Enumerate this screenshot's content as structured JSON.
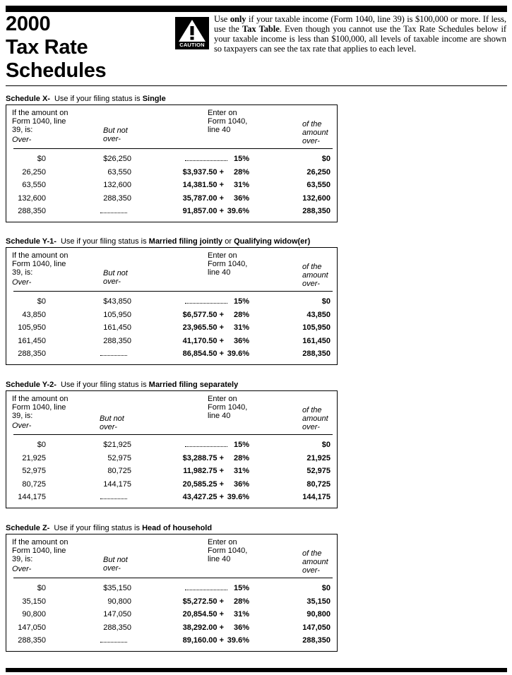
{
  "header": {
    "title_lines": [
      "2000",
      "Tax Rate",
      "Schedules"
    ],
    "caution": "CAUTION",
    "notice": [
      {
        "text": "Use ",
        "bold": false
      },
      {
        "text": "only",
        "bold": true
      },
      {
        "text": " if your taxable income (Form 1040, line 39) is $100,000 or more. If less, use the ",
        "bold": false
      },
      {
        "text": "Tax Table",
        "bold": true
      },
      {
        "text": ". Even though you cannot use the Tax Rate Schedules below if your taxable income is less than $100,000, all levels of taxable income are shown so taxpayers can see the tax rate that applies to each level.",
        "bold": false
      }
    ]
  },
  "columns": {
    "over_intro": "If the amount on Form 1040, line 39, is:",
    "over": "Over-",
    "but_not_over": "But not over-",
    "enter": "Enter on Form 1040, line 40",
    "of_amount_over": "of the amount over-"
  },
  "schedules": [
    {
      "caption": [
        {
          "text": "Schedule X-",
          "bold": true
        },
        {
          "text": "Use if your filing status is ",
          "bold": false
        },
        {
          "text": "Single",
          "bold": true
        }
      ],
      "rows": [
        {
          "over": "$0",
          "but_not_over": "$26,250",
          "base": null,
          "rate": "15%",
          "of_amount_over": "$0"
        },
        {
          "over": "26,250",
          "but_not_over": "63,550",
          "base": "$3,937.50 +",
          "rate": "28%",
          "of_amount_over": "26,250"
        },
        {
          "over": "63,550",
          "but_not_over": "132,600",
          "base": "14,381.50 +",
          "rate": "31%",
          "of_amount_over": "63,550"
        },
        {
          "over": "132,600",
          "but_not_over": "288,350",
          "base": "35,787.00 +",
          "rate": "36%",
          "of_amount_over": "132,600"
        },
        {
          "over": "288,350",
          "but_not_over": null,
          "base": "91,857.00 +",
          "rate": "39.6%",
          "of_amount_over": "288,350"
        }
      ]
    },
    {
      "caption": [
        {
          "text": "Schedule Y-1-",
          "bold": true
        },
        {
          "text": "Use if your filing status is ",
          "bold": false
        },
        {
          "text": "Married filing jointly",
          "bold": true
        },
        {
          "text": " or ",
          "bold": false
        },
        {
          "text": "Qualifying widow(er)",
          "bold": true
        }
      ],
      "rows": [
        {
          "over": "$0",
          "but_not_over": "$43,850",
          "base": null,
          "rate": "15%",
          "of_amount_over": "$0"
        },
        {
          "over": "43,850",
          "but_not_over": "105,950",
          "base": "$6,577.50 +",
          "rate": "28%",
          "of_amount_over": "43,850"
        },
        {
          "over": "105,950",
          "but_not_over": "161,450",
          "base": "23,965.50 +",
          "rate": "31%",
          "of_amount_over": "105,950"
        },
        {
          "over": "161,450",
          "but_not_over": "288,350",
          "base": "41,170.50 +",
          "rate": "36%",
          "of_amount_over": "161,450"
        },
        {
          "over": "288,350",
          "but_not_over": null,
          "base": "86,854.50 +",
          "rate": "39.6%",
          "of_amount_over": "288,350"
        }
      ]
    },
    {
      "caption": [
        {
          "text": "Schedule Y-2-",
          "bold": true
        },
        {
          "text": "Use if your filing status is ",
          "bold": false
        },
        {
          "text": "Married filing separately",
          "bold": true
        }
      ],
      "rows": [
        {
          "over": "$0",
          "but_not_over": "$21,925",
          "base": null,
          "rate": "15%",
          "of_amount_over": "$0"
        },
        {
          "over": "21,925",
          "but_not_over": "52,975",
          "base": "$3,288.75 +",
          "rate": "28%",
          "of_amount_over": "21,925"
        },
        {
          "over": "52,975",
          "but_not_over": "80,725",
          "base": "11,982.75 +",
          "rate": "31%",
          "of_amount_over": "52,975"
        },
        {
          "over": "80,725",
          "but_not_over": "144,175",
          "base": "20,585.25 +",
          "rate": "36%",
          "of_amount_over": "80,725"
        },
        {
          "over": "144,175",
          "but_not_over": null,
          "base": "43,427.25 +",
          "rate": "39.6%",
          "of_amount_over": "144,175"
        }
      ]
    },
    {
      "caption": [
        {
          "text": "Schedule Z-",
          "bold": true
        },
        {
          "text": "Use if your filing status is ",
          "bold": false
        },
        {
          "text": "Head of household",
          "bold": true
        }
      ],
      "rows": [
        {
          "over": "$0",
          "but_not_over": "$35,150",
          "base": null,
          "rate": "15%",
          "of_amount_over": "$0"
        },
        {
          "over": "35,150",
          "but_not_over": "90,800",
          "base": "$5,272.50 +",
          "rate": "28%",
          "of_amount_over": "35,150"
        },
        {
          "over": "90,800",
          "but_not_over": "147,050",
          "base": "20,854.50 +",
          "rate": "31%",
          "of_amount_over": "90,800"
        },
        {
          "over": "147,050",
          "but_not_over": "288,350",
          "base": "38,292.00 +",
          "rate": "36%",
          "of_amount_over": "147,050"
        },
        {
          "over": "288,350",
          "but_not_over": null,
          "base": "89,160.00 +",
          "rate": "39.6%",
          "of_amount_over": "288,350"
        }
      ]
    }
  ]
}
